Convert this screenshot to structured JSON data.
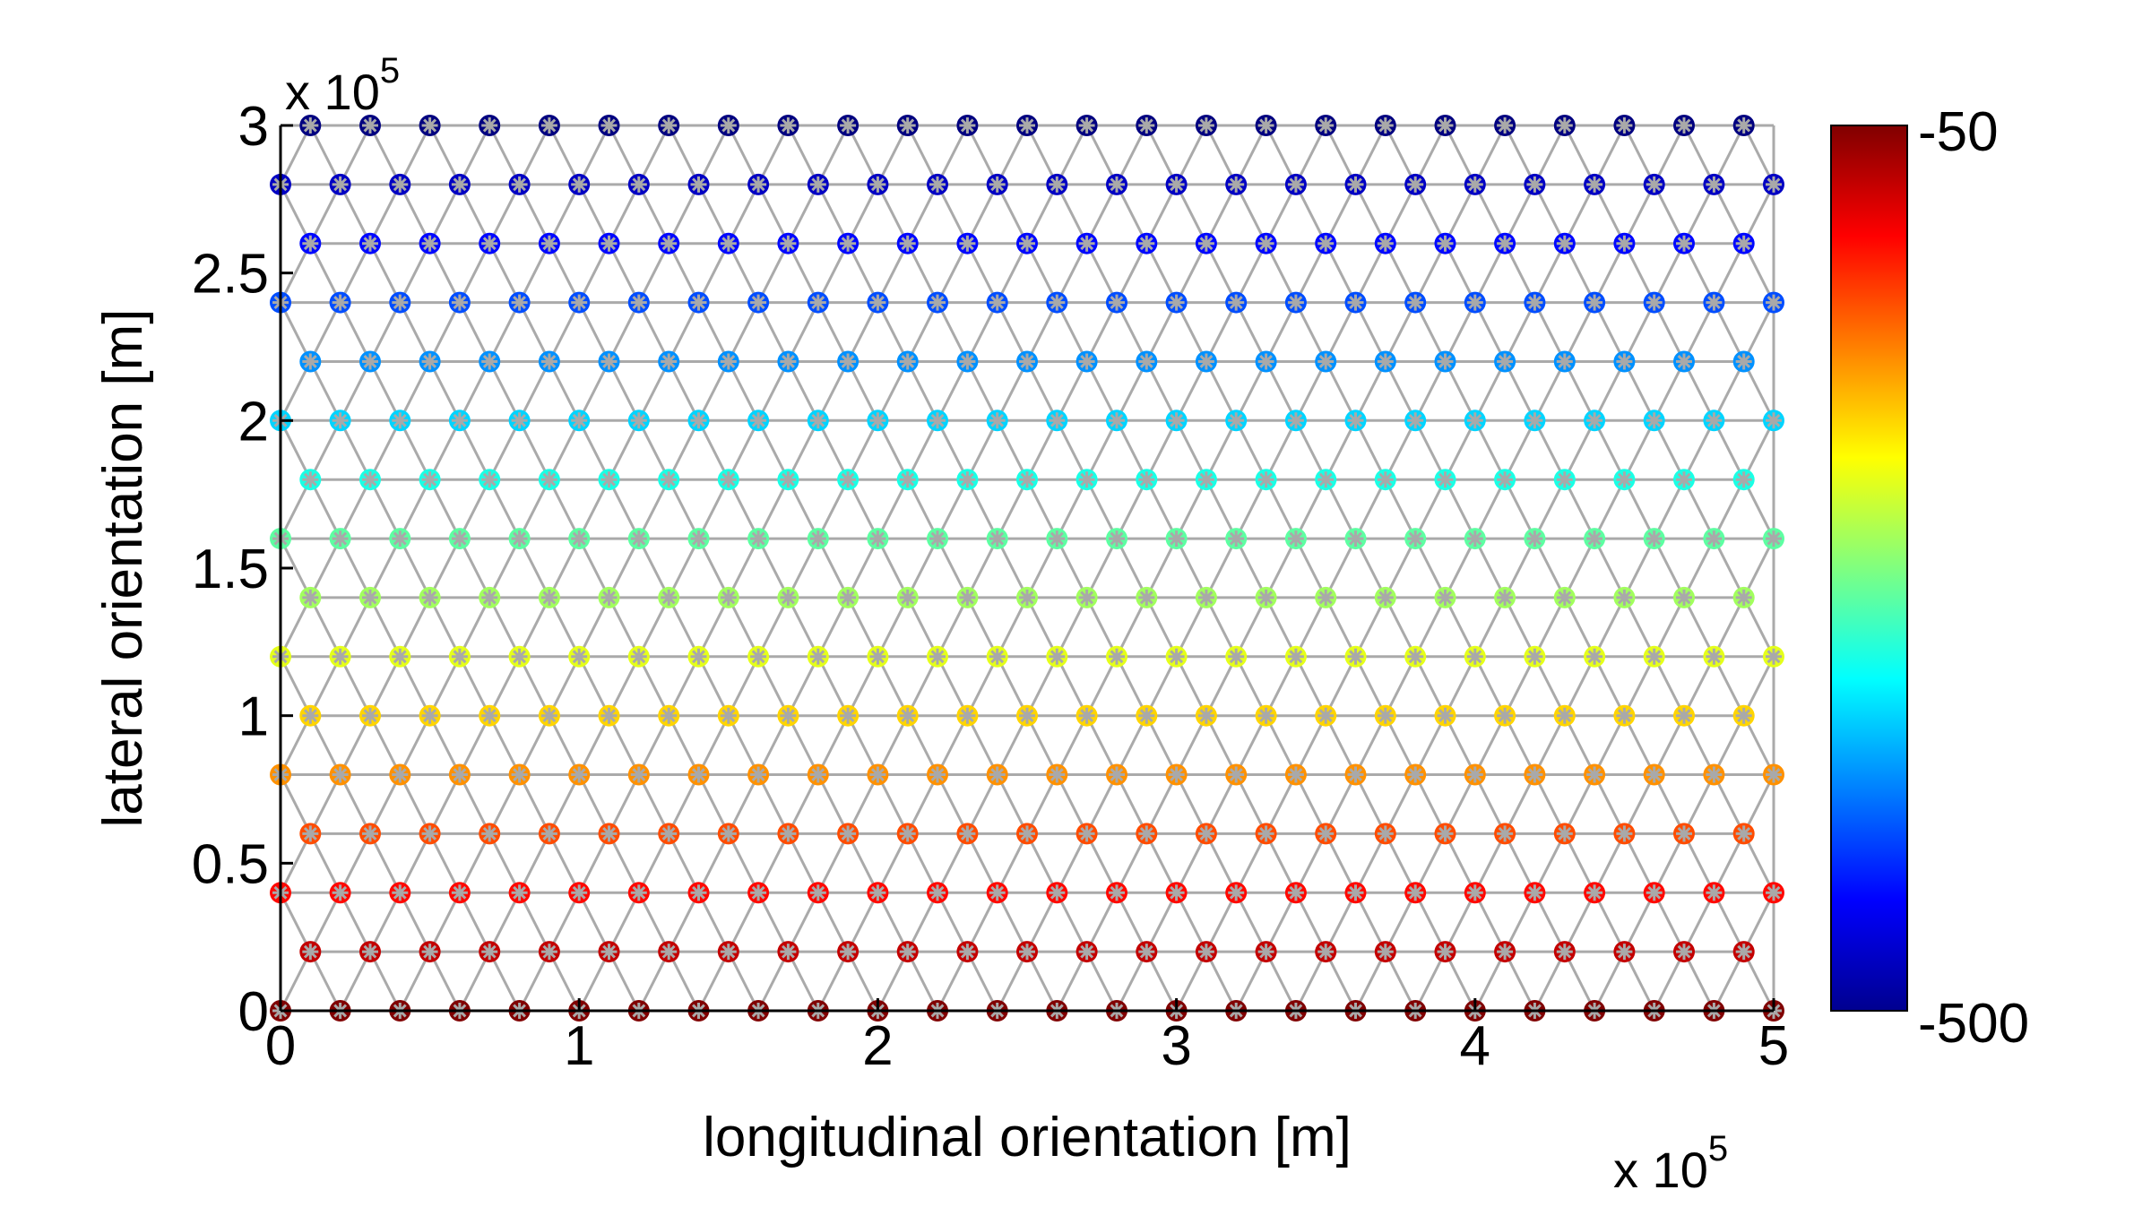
{
  "chart_data": {
    "type": "scatter",
    "title": "",
    "xlabel": "longitudinal orientation [m]",
    "ylabel": "lateral orientation [m]",
    "xlim": [
      0,
      500000
    ],
    "ylim": [
      0,
      300000
    ],
    "x_ticks": [
      "0",
      "1",
      "2",
      "3",
      "4",
      "5"
    ],
    "y_ticks": [
      "0",
      "0.5",
      "1",
      "1.5",
      "2",
      "2.5",
      "3"
    ],
    "x_scale_label": "x 10",
    "y_scale_label": "x 10",
    "scale_exponent": "5",
    "grid": false,
    "colormap": "jet",
    "colorbar": {
      "min": -500,
      "max": -50,
      "min_label": "-500",
      "max_label": "-50",
      "placement": "right"
    },
    "mesh": "triangulated node mesh, node spacing 20000 m in x and 20000 m in y with alternate rows offset by 10000 m",
    "node_value_relation": "color varies with lateral position: -50 at y = 0, -500 at y = 300000",
    "nodes": {
      "rows": [
        {
          "y": 0,
          "x_start": 0,
          "x_step": 20000,
          "count": 26,
          "value": -50
        },
        {
          "y": 20000,
          "x_start": 10000,
          "x_step": 20000,
          "count": 25,
          "value": -80
        },
        {
          "y": 40000,
          "x_start": 0,
          "x_step": 20000,
          "count": 26,
          "value": -110
        },
        {
          "y": 60000,
          "x_start": 10000,
          "x_step": 20000,
          "count": 25,
          "value": -140
        },
        {
          "y": 80000,
          "x_start": 0,
          "x_step": 20000,
          "count": 26,
          "value": -170
        },
        {
          "y": 100000,
          "x_start": 10000,
          "x_step": 20000,
          "count": 25,
          "value": -200
        },
        {
          "y": 120000,
          "x_start": 0,
          "x_step": 20000,
          "count": 26,
          "value": -230
        },
        {
          "y": 140000,
          "x_start": 10000,
          "x_step": 20000,
          "count": 25,
          "value": -260
        },
        {
          "y": 160000,
          "x_start": 0,
          "x_step": 20000,
          "count": 26,
          "value": -290
        },
        {
          "y": 180000,
          "x_start": 10000,
          "x_step": 20000,
          "count": 25,
          "value": -320
        },
        {
          "y": 200000,
          "x_start": 0,
          "x_step": 20000,
          "count": 26,
          "value": -350
        },
        {
          "y": 220000,
          "x_start": 10000,
          "x_step": 20000,
          "count": 25,
          "value": -380
        },
        {
          "y": 240000,
          "x_start": 0,
          "x_step": 20000,
          "count": 26,
          "value": -410
        },
        {
          "y": 260000,
          "x_start": 10000,
          "x_step": 20000,
          "count": 25,
          "value": -440
        },
        {
          "y": 280000,
          "x_start": 0,
          "x_step": 20000,
          "count": 26,
          "value": -470
        },
        {
          "y": 300000,
          "x_start": 10000,
          "x_step": 20000,
          "count": 25,
          "value": -500
        }
      ]
    },
    "colors": {
      "mesh_line": "#aaaaaa",
      "node_marker": "#a9a9a9",
      "axis": "#000000"
    }
  }
}
